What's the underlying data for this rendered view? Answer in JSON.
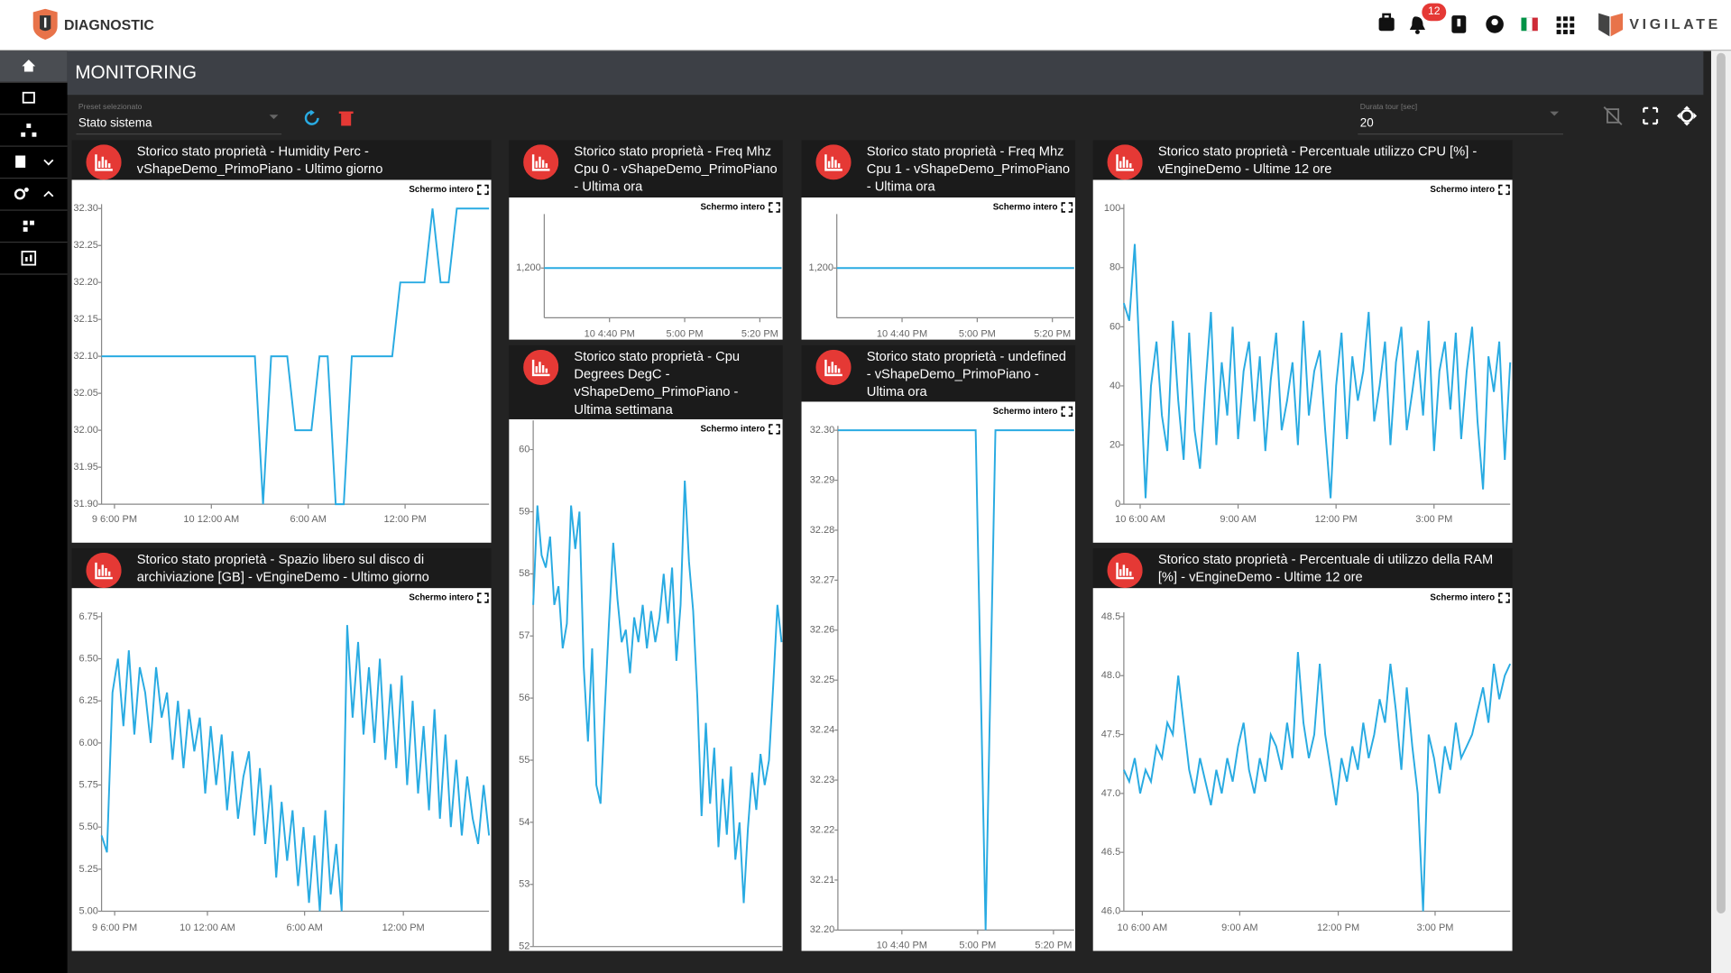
{
  "header": {
    "app_name": "DIAGNOSTIC",
    "notification_count": 12,
    "brand": "VIGILATE"
  },
  "page_title": "MONITORING",
  "preset": {
    "label": "Preset selezionato",
    "value": "Stato sistema"
  },
  "tour": {
    "label": "Durata tour [sec]",
    "value": "20"
  },
  "fullscreen_label": "Schermo intero",
  "chart_data": [
    {
      "type": "line",
      "title": "Storico stato proprietà - Humidity Perc - vShapeDemo_PrimoPiano - Ultimo giorno",
      "color": "#29abe2",
      "values": [
        32.1,
        32.1,
        32.1,
        32.1,
        32.1,
        32.1,
        32.1,
        32.1,
        32.1,
        32.1,
        32.1,
        32.1,
        32.1,
        32.1,
        32.1,
        32.1,
        32.1,
        32.1,
        32.1,
        32.1,
        31.9,
        32.1,
        32.1,
        32.1,
        32.0,
        32.0,
        32.0,
        32.1,
        32.1,
        31.9,
        31.9,
        32.1,
        32.1,
        32.1,
        32.1,
        32.1,
        32.1,
        32.2,
        32.2,
        32.2,
        32.2,
        32.3,
        32.2,
        32.2,
        32.3,
        32.3,
        32.3,
        32.3,
        32.3
      ],
      "ylim": [
        31.9,
        32.3
      ],
      "yticks": [
        {
          "value": 31.9,
          "label": "31.90"
        },
        31.95,
        {
          "value": 32.0,
          "label": "32.00"
        },
        32.05,
        {
          "value": 32.1,
          "label": "32.10"
        },
        32.15,
        {
          "value": 32.2,
          "label": "32.20"
        },
        32.25,
        {
          "value": 32.3,
          "label": "32.30"
        }
      ],
      "xlim": [
        0,
        48
      ],
      "xticks": [
        {
          "value": 1.6,
          "label": "9 6:00 PM"
        },
        {
          "value": 13.6,
          "label": "10 12:00 AM"
        },
        {
          "value": 25.6,
          "label": "6:00 AM"
        },
        {
          "value": 37.6,
          "label": "12:00 PM"
        }
      ]
    },
    {
      "type": "line",
      "title": "Storico stato proprietà - Freq Mhz Cpu 0 - vShapeDemo_PrimoPiano - Ultima ora",
      "color": "#29abe2",
      "values": [
        1200,
        1200,
        1200,
        1200,
        1200,
        1200,
        1200,
        1200,
        1200,
        1200,
        1200,
        1200,
        1200
      ],
      "ylim": [
        1150,
        1250
      ],
      "yticks": [
        {
          "value": 1200,
          "label": "1,200"
        }
      ],
      "xlim": [
        0,
        12
      ],
      "xticks": [
        {
          "value": 3.3,
          "label": "10 4:40 PM"
        },
        {
          "value": 7.1,
          "label": "5:00 PM"
        },
        {
          "value": 10.9,
          "label": "5:20 PM"
        }
      ]
    },
    {
      "type": "line",
      "title": "Storico stato proprietà - Freq Mhz Cpu 1 - vShapeDemo_PrimoPiano - Ultima ora",
      "color": "#29abe2",
      "values": [
        1200,
        1200,
        1200,
        1200,
        1200,
        1200,
        1200,
        1200,
        1200,
        1200,
        1200,
        1200,
        1200
      ],
      "ylim": [
        1150,
        1250
      ],
      "yticks": [
        {
          "value": 1200,
          "label": "1,200"
        }
      ],
      "xlim": [
        0,
        12
      ],
      "xticks": [
        {
          "value": 3.3,
          "label": "10 4:40 PM"
        },
        {
          "value": 7.1,
          "label": "5:00 PM"
        },
        {
          "value": 10.9,
          "label": "5:20 PM"
        }
      ]
    },
    {
      "type": "line",
      "title": "Storico stato proprietà - Percentuale utilizzo CPU [%] - vEngineDemo - Ultime 12 ore",
      "color": "#29abe2",
      "values": [
        68,
        62,
        88,
        45,
        2,
        40,
        55,
        30,
        18,
        62,
        35,
        15,
        58,
        25,
        12,
        40,
        65,
        20,
        48,
        30,
        60,
        22,
        45,
        55,
        28,
        50,
        18,
        42,
        58,
        25,
        35,
        48,
        20,
        62,
        30,
        45,
        52,
        25,
        2,
        40,
        58,
        22,
        50,
        35,
        45,
        65,
        28,
        40,
        55,
        20,
        48,
        60,
        25,
        38,
        52,
        30,
        62,
        18,
        45,
        55,
        32,
        58,
        22,
        45,
        60,
        28,
        5,
        50,
        38,
        55,
        15,
        48
      ],
      "ylim": [
        0,
        100
      ],
      "yticks": [
        0,
        20,
        40,
        60,
        80,
        100
      ],
      "xlim": [
        0,
        71
      ],
      "xticks": [
        {
          "value": 3,
          "label": "10 6:00 AM"
        },
        {
          "value": 21,
          "label": "9:00 AM"
        },
        {
          "value": 39,
          "label": "12:00 PM"
        },
        {
          "value": 57,
          "label": "3:00 PM"
        }
      ]
    },
    {
      "type": "line",
      "title": "Storico stato proprietà - Cpu Degrees DegC - vShapeDemo_PrimoPiano - Ultima settimana",
      "color": "#29abe2",
      "values": [
        57.5,
        59.1,
        58.3,
        58.1,
        58.6,
        57.5,
        57.8,
        56.8,
        57.2,
        59.1,
        58.4,
        59.0,
        56.5,
        55.3,
        56.8,
        54.6,
        54.3,
        55.8,
        57.2,
        58.5,
        57.6,
        56.9,
        57.1,
        56.4,
        57.3,
        56.9,
        57.5,
        56.8,
        57.4,
        56.9,
        57.3,
        58.0,
        57.2,
        58.1,
        56.6,
        57.5,
        59.5,
        58.2,
        57.4,
        56.0,
        54.1,
        55.6,
        54.3,
        55.2,
        53.6,
        54.7,
        53.8,
        54.9,
        53.4,
        54.0,
        52.7,
        53.9,
        54.8,
        54.2,
        55.1,
        54.6,
        55.0,
        56.2,
        57.5,
        56.9
      ],
      "ylim": [
        52,
        60.4
      ],
      "yticks": [
        52,
        53,
        54,
        55,
        56,
        57,
        58,
        59,
        60
      ],
      "xlim": [
        0,
        59
      ]
    },
    {
      "type": "line",
      "title": "Storico stato proprietà - undefined - vShapeDemo_PrimoPiano - Ultima ora",
      "color": "#29abe2",
      "values": [
        32.3,
        32.3,
        32.3,
        32.3,
        32.3,
        32.3,
        32.3,
        32.3,
        32.3,
        32.3,
        32.3,
        32.3,
        32.3,
        32.3,
        32.3,
        32.2,
        32.3,
        32.3,
        32.3,
        32.3,
        32.3,
        32.3,
        32.3,
        32.3,
        32.3
      ],
      "ylim": [
        32.2,
        32.3
      ],
      "yticks": [
        {
          "value": 32.2,
          "label": "32.20"
        },
        32.21,
        32.22,
        32.23,
        32.24,
        32.25,
        32.26,
        32.27,
        32.28,
        32.29,
        {
          "value": 32.3,
          "label": "32.30"
        }
      ],
      "xlim": [
        0,
        24
      ],
      "xticks": [
        {
          "value": 6.5,
          "label": "10 4:40 PM"
        },
        {
          "value": 14.2,
          "label": "5:00 PM"
        },
        {
          "value": 21.9,
          "label": "5:20 PM"
        }
      ]
    },
    {
      "type": "line",
      "title": "Storico stato proprietà - Spazio libero sul disco di archiviazione [GB] - vEngineDemo - Ultimo giorno",
      "color": "#29abe2",
      "values": [
        5.45,
        5.35,
        6.3,
        6.5,
        6.1,
        6.55,
        6.05,
        6.45,
        6.3,
        6.0,
        6.45,
        6.15,
        6.3,
        5.9,
        6.25,
        5.85,
        6.2,
        5.95,
        6.15,
        5.7,
        6.1,
        5.75,
        6.05,
        5.6,
        5.95,
        5.55,
        5.8,
        5.95,
        5.45,
        5.85,
        5.4,
        5.75,
        5.2,
        5.65,
        5.3,
        5.6,
        5.15,
        5.5,
        5.05,
        5.45,
        5.0,
        5.6,
        5.1,
        5.4,
        5.0,
        6.7,
        6.15,
        6.6,
        6.05,
        6.45,
        6.0,
        6.5,
        5.9,
        6.35,
        5.85,
        6.4,
        5.75,
        6.25,
        5.7,
        6.1,
        5.6,
        6.2,
        5.55,
        6.05,
        5.5,
        5.9,
        5.45,
        5.8,
        5.55,
        5.4,
        5.75,
        5.45
      ],
      "ylim": [
        5.0,
        6.75
      ],
      "yticks": [
        {
          "value": 5.0,
          "label": "5.00"
        },
        5.25,
        {
          "value": 5.5,
          "label": "5.50"
        },
        5.75,
        {
          "value": 6.0,
          "label": "6.00"
        },
        6.25,
        {
          "value": 6.5,
          "label": "6.50"
        },
        6.75
      ],
      "xlim": [
        0,
        71
      ],
      "xticks": [
        {
          "value": 2.4,
          "label": "9 6:00 PM"
        },
        {
          "value": 19.4,
          "label": "10 12:00 AM"
        },
        {
          "value": 37.2,
          "label": "6:00 AM"
        },
        {
          "value": 55.3,
          "label": "12:00 PM"
        }
      ]
    },
    {
      "type": "line",
      "title": "Storico stato proprietà - Percentuale di utilizzo della RAM [%] - vEngineDemo - Ultime 12 ore",
      "color": "#29abe2",
      "values": [
        47.2,
        47.1,
        47.3,
        47.0,
        47.2,
        47.1,
        47.4,
        47.3,
        47.6,
        47.5,
        48.0,
        47.6,
        47.2,
        47.0,
        47.3,
        47.1,
        46.9,
        47.2,
        47.0,
        47.3,
        47.1,
        47.4,
        47.6,
        47.2,
        47.0,
        47.3,
        47.1,
        47.5,
        47.4,
        47.2,
        47.6,
        47.3,
        48.2,
        47.6,
        47.3,
        47.5,
        48.1,
        47.5,
        47.2,
        46.9,
        47.3,
        47.1,
        47.4,
        47.2,
        47.6,
        47.3,
        47.5,
        47.8,
        47.6,
        48.1,
        47.7,
        47.2,
        47.9,
        47.4,
        47.0,
        46.0,
        47.5,
        47.3,
        47.0,
        47.4,
        47.2,
        47.6,
        47.3,
        47.4,
        47.5,
        47.7,
        47.9,
        47.6,
        48.1,
        47.8,
        48.0,
        48.1
      ],
      "ylim": [
        46.0,
        48.5
      ],
      "yticks": [
        {
          "value": 46.0,
          "label": "46.0"
        },
        46.5,
        {
          "value": 47.0,
          "label": "47.0"
        },
        47.5,
        {
          "value": 48.0,
          "label": "48.0"
        },
        48.5
      ],
      "xlim": [
        0,
        71
      ],
      "xticks": [
        {
          "value": 3.4,
          "label": "10 6:00 AM"
        },
        {
          "value": 21.3,
          "label": "9:00 AM"
        },
        {
          "value": 39.4,
          "label": "12:00 PM"
        },
        {
          "value": 57.2,
          "label": "3:00 PM"
        }
      ]
    }
  ]
}
